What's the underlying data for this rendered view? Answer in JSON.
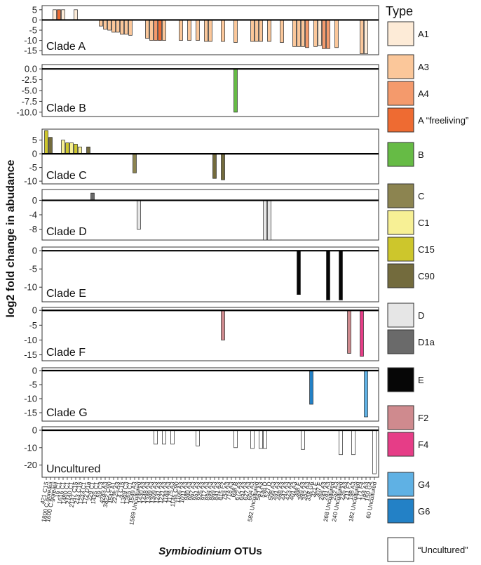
{
  "chart_data": {
    "type": "bar",
    "ylabel": "log2 fold change in abudance",
    "xlabel_italic": "Symbiodinium",
    "xlabel_rest": " OTUs",
    "legend_title": "Type",
    "otus": [
      "421 C15",
      "1800 C.goreaui",
      "1600 C.goreaui",
      "16 C1",
      "1616 C1",
      "1480 C1",
      "2140 C1",
      "2147 C15",
      "213 C15",
      "1233 C1",
      "172 D1a",
      "229 C1",
      "1435 C1",
      "59 C3",
      "4283 A3",
      "3822 C90",
      "1542 A1",
      "2225 A3",
      "4 C15",
      "1389 C3",
      "1265 C1",
      "1549 A3",
      "1569 Uncultured",
      "1430 A3",
      "1448 A3",
      "1389 A3",
      "1309 A3",
      "1231 A3",
      "1221 A3",
      "1184 A3",
      "1175 A3",
      "1145 C90",
      "1106 A3",
      "1011 A3",
      "980 A3",
      "967 A3",
      "951 A3",
      "926 A3",
      "917 A3",
      "894 A3",
      "869 A3",
      "841 A3",
      "815 F2",
      "754 A3",
      "718 A3",
      "698 B",
      "672 A3",
      "651 A3",
      "627 A3",
      "604 A3",
      "582 Uncultured",
      "561 A3",
      "548 D",
      "527 D",
      "508 A3",
      "491 A3",
      "468 A3",
      "447 A3",
      "423 A4",
      "401 A3",
      "388 E",
      "369 A3",
      "352 A3",
      "338 G6",
      "321 E",
      "307 E",
      "294 A3",
      "281 A3",
      "268 Uncultured",
      "252 A3",
      "240 Uncultured",
      "226 A3",
      "211 F2",
      "198 A3",
      "182 Uncultured",
      "171 F4",
      "164 A3",
      "150 G4",
      "60 Uncultured"
    ],
    "colors": {
      "A1": "#fdebd7",
      "A3": "#fbc79a",
      "A4": "#f49a6c",
      "Afree": "#ee6b32",
      "B": "#66bb45",
      "C": "#8c8450",
      "C1": "#f7f095",
      "C15": "#cdc62c",
      "C90": "#736b3d",
      "D": "#e6e6e6",
      "D1a": "#6a6a6a",
      "E": "#060606",
      "F2": "#cf8a8e",
      "F4": "#e63d87",
      "G4": "#5fb1e4",
      "G6": "#2381c6",
      "Unc": "#ffffff"
    },
    "legend": [
      {
        "key": "A1",
        "label": "A1"
      },
      {
        "key": "A3",
        "label": "A3"
      },
      {
        "key": "A4",
        "label": "A4"
      },
      {
        "key": "Afree",
        "label": "A “freeliving”"
      },
      {
        "key": "B",
        "label": "B"
      },
      {
        "key": "C",
        "label": "C"
      },
      {
        "key": "C1",
        "label": "C1"
      },
      {
        "key": "C15",
        "label": "C15"
      },
      {
        "key": "C90",
        "label": "C90"
      },
      {
        "key": "D",
        "label": "D"
      },
      {
        "key": "D1a",
        "label": "D1a"
      },
      {
        "key": "E",
        "label": "E"
      },
      {
        "key": "F2",
        "label": "F2"
      },
      {
        "key": "F4",
        "label": "F4"
      },
      {
        "key": "G4",
        "label": "G4"
      },
      {
        "key": "G6",
        "label": "G6"
      },
      {
        "key": "Unc",
        "label": "“Uncultured”"
      }
    ],
    "panels": [
      {
        "name": "Clade A",
        "ylim": [
          -17,
          7
        ],
        "yticks": [
          "5",
          "0",
          "-5",
          "-10",
          "-15"
        ],
        "ytick_values": [
          5,
          0,
          -5,
          -10,
          -15
        ],
        "bars": [
          {
            "i": 2,
            "v": 5,
            "t": "A1"
          },
          {
            "i": 3,
            "v": 5,
            "t": "Afree"
          },
          {
            "i": 4,
            "v": 5,
            "t": "A1"
          },
          {
            "i": 7,
            "v": 5,
            "t": "A1"
          },
          {
            "i": 13,
            "v": -3,
            "t": "A3"
          },
          {
            "i": 14,
            "v": -4.5,
            "t": "A3"
          },
          {
            "i": 15,
            "v": -5,
            "t": "A3"
          },
          {
            "i": 16,
            "v": -6,
            "t": "A3"
          },
          {
            "i": 17,
            "v": -6,
            "t": "A3"
          },
          {
            "i": 18,
            "v": -7,
            "t": "A3"
          },
          {
            "i": 19,
            "v": -7,
            "t": "A3"
          },
          {
            "i": 20,
            "v": -7.5,
            "t": "A3"
          },
          {
            "i": 24,
            "v": -9,
            "t": "A3"
          },
          {
            "i": 25,
            "v": -10,
            "t": "A3"
          },
          {
            "i": 26,
            "v": -10,
            "t": "A4"
          },
          {
            "i": 27,
            "v": -10,
            "t": "Afree"
          },
          {
            "i": 28,
            "v": -10,
            "t": "A3"
          },
          {
            "i": 32,
            "v": -10,
            "t": "A3"
          },
          {
            "i": 34,
            "v": -10,
            "t": "A3"
          },
          {
            "i": 36,
            "v": -10,
            "t": "A3"
          },
          {
            "i": 38,
            "v": -10.5,
            "t": "A3"
          },
          {
            "i": 39,
            "v": -10.5,
            "t": "A3"
          },
          {
            "i": 42,
            "v": -10.5,
            "t": "A3"
          },
          {
            "i": 45,
            "v": -11,
            "t": "A3"
          },
          {
            "i": 49,
            "v": -10.5,
            "t": "A3"
          },
          {
            "i": 50,
            "v": -10.5,
            "t": "A3"
          },
          {
            "i": 51,
            "v": -10.5,
            "t": "A3"
          },
          {
            "i": 53,
            "v": -10.5,
            "t": "A3"
          },
          {
            "i": 56,
            "v": -11,
            "t": "A3"
          },
          {
            "i": 59,
            "v": -13,
            "t": "A3"
          },
          {
            "i": 60,
            "v": -13,
            "t": "A3"
          },
          {
            "i": 61,
            "v": -13,
            "t": "A3"
          },
          {
            "i": 62,
            "v": -13.5,
            "t": "A4"
          },
          {
            "i": 64,
            "v": -13,
            "t": "A3"
          },
          {
            "i": 65,
            "v": -12.5,
            "t": "A1"
          },
          {
            "i": 66,
            "v": -14,
            "t": "A4"
          },
          {
            "i": 67,
            "v": -14,
            "t": "A4"
          },
          {
            "i": 69,
            "v": -13.5,
            "t": "A3"
          },
          {
            "i": 75,
            "v": -16.5,
            "t": "A3"
          },
          {
            "i": 76,
            "v": -16.5,
            "t": "A1"
          }
        ]
      },
      {
        "name": "Clade B",
        "ylim": [
          -11,
          1
        ],
        "yticks": [
          "0.0",
          "-2.5",
          "-5.0",
          "-7.5",
          "-10.0"
        ],
        "ytick_values": [
          0,
          -2.5,
          -5,
          -7.5,
          -10
        ],
        "bars": [
          {
            "i": 45,
            "v": -10,
            "t": "B"
          }
        ]
      },
      {
        "name": "Clade C",
        "ylim": [
          -11,
          9
        ],
        "yticks": [
          "5",
          "0",
          "-5",
          "-10"
        ],
        "ytick_values": [
          5,
          0,
          -5,
          -10
        ],
        "bars": [
          {
            "i": 0,
            "v": 8.5,
            "t": "C15"
          },
          {
            "i": 1,
            "v": 6,
            "t": "C90"
          },
          {
            "i": 4,
            "v": 5,
            "t": "C1"
          },
          {
            "i": 5,
            "v": 4,
            "t": "C15"
          },
          {
            "i": 6,
            "v": 4,
            "t": "C1"
          },
          {
            "i": 7,
            "v": 3.5,
            "t": "C15"
          },
          {
            "i": 8,
            "v": 2.5,
            "t": "C1"
          },
          {
            "i": 10,
            "v": 2.5,
            "t": "C90"
          },
          {
            "i": 21,
            "v": -7,
            "t": "C"
          },
          {
            "i": 40,
            "v": -9,
            "t": "C90"
          },
          {
            "i": 42,
            "v": -9.5,
            "t": "C90"
          }
        ]
      },
      {
        "name": "Clade D",
        "ylim": [
          -11,
          3
        ],
        "yticks": [
          "0",
          "-4",
          "-8"
        ],
        "ytick_values": [
          0,
          -4,
          -8
        ],
        "bars": [
          {
            "i": 11,
            "v": 2,
            "t": "D1a"
          },
          {
            "i": 22,
            "v": -8,
            "t": "D"
          },
          {
            "i": 52,
            "v": -11,
            "t": "D"
          },
          {
            "i": 53,
            "v": -11,
            "t": "D"
          }
        ]
      },
      {
        "name": "Clade E",
        "ylim": [
          -14,
          1
        ],
        "yticks": [
          "0",
          "-5",
          "-10"
        ],
        "ytick_values": [
          0,
          -5,
          -10
        ],
        "bars": [
          {
            "i": 60,
            "v": -12,
            "t": "E"
          },
          {
            "i": 67,
            "v": -13.5,
            "t": "E"
          },
          {
            "i": 70,
            "v": -13.5,
            "t": "E"
          }
        ]
      },
      {
        "name": "Clade F",
        "ylim": [
          -17,
          1
        ],
        "yticks": [
          "0",
          "-5",
          "-10",
          "-15"
        ],
        "ytick_values": [
          0,
          -5,
          -10,
          -15
        ],
        "bars": [
          {
            "i": 42,
            "v": -10,
            "t": "F2"
          },
          {
            "i": 72,
            "v": -14.5,
            "t": "F2"
          },
          {
            "i": 75,
            "v": -15.5,
            "t": "F4"
          }
        ]
      },
      {
        "name": "Clade G",
        "ylim": [
          -18,
          1
        ],
        "yticks": [
          "0",
          "-5",
          "-10",
          "-15"
        ],
        "ytick_values": [
          0,
          -5,
          -10,
          -15
        ],
        "bars": [
          {
            "i": 63,
            "v": -12,
            "t": "G6"
          },
          {
            "i": 76,
            "v": -16.5,
            "t": "G4"
          }
        ]
      },
      {
        "name": "Uncultured",
        "ylim": [
          -27,
          2
        ],
        "yticks": [
          "0",
          "-10",
          "-20"
        ],
        "ytick_values": [
          0,
          -10,
          -20
        ],
        "bars": [
          {
            "i": 26,
            "v": -8,
            "t": "Unc"
          },
          {
            "i": 28,
            "v": -8,
            "t": "Unc"
          },
          {
            "i": 30,
            "v": -8,
            "t": "Unc"
          },
          {
            "i": 36,
            "v": -9,
            "t": "Unc"
          },
          {
            "i": 45,
            "v": -10,
            "t": "Unc"
          },
          {
            "i": 49,
            "v": -10.5,
            "t": "Unc"
          },
          {
            "i": 51,
            "v": -10.5,
            "t": "Unc"
          },
          {
            "i": 52,
            "v": -10.5,
            "t": "Unc"
          },
          {
            "i": 61,
            "v": -11,
            "t": "Unc"
          },
          {
            "i": 70,
            "v": -14,
            "t": "Unc"
          },
          {
            "i": 73,
            "v": -14,
            "t": "Unc"
          },
          {
            "i": 78,
            "v": -25,
            "t": "Unc"
          }
        ]
      }
    ]
  }
}
